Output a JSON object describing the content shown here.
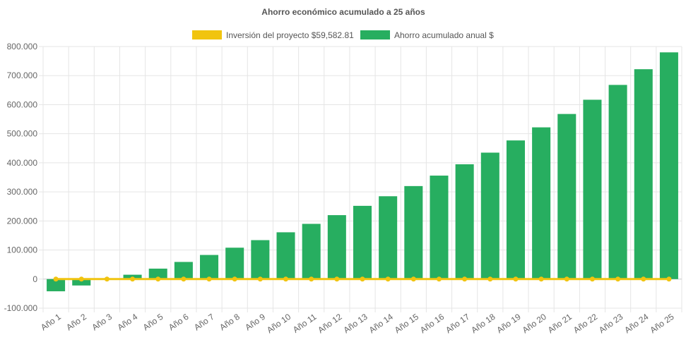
{
  "chart_data": {
    "type": "bar",
    "title": "Ahorro económico acumulado a 25 años",
    "categories": [
      "Año 1",
      "Año 2",
      "Año 3",
      "Año 4",
      "Año 5",
      "Año 6",
      "Año 7",
      "Año 8",
      "Año 9",
      "Año 10",
      "Año 11",
      "Año 12",
      "Año 13",
      "Año 14",
      "Año 15",
      "Año 16",
      "Año 17",
      "Año 18",
      "Año 19",
      "Año 20",
      "Año 21",
      "Año 22",
      "Año 23",
      "Año 24",
      "Año 25"
    ],
    "yticks": [
      "800.000",
      "700.000",
      "600.000",
      "500.000",
      "400.000",
      "300.000",
      "200.000",
      "100.000",
      "0",
      "-100.000"
    ],
    "ylim": [
      -100000,
      800000
    ],
    "grid": true,
    "legend_position": "top",
    "series": [
      {
        "name": "Inversión del proyecto $59,582.81",
        "type": "line",
        "color": "#f1c40f",
        "values": [
          0,
          0,
          0,
          0,
          0,
          0,
          0,
          0,
          0,
          0,
          0,
          0,
          0,
          0,
          0,
          0,
          0,
          0,
          0,
          0,
          0,
          0,
          0,
          0,
          0
        ]
      },
      {
        "name": "Ahorro acumulado anual $",
        "type": "bar",
        "color": "#27ae60",
        "values": [
          -42000,
          -22000,
          -3000,
          15000,
          36000,
          59000,
          83000,
          108000,
          134000,
          161000,
          190000,
          220000,
          252000,
          285000,
          320000,
          356000,
          395000,
          435000,
          477000,
          522000,
          568000,
          617000,
          668000,
          722000,
          780000
        ]
      }
    ]
  }
}
